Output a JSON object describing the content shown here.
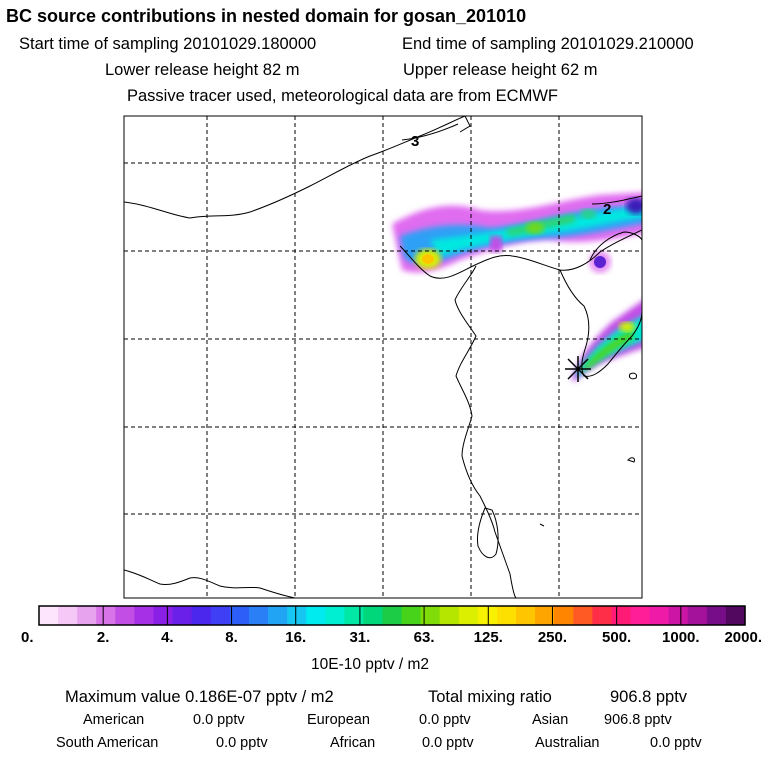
{
  "header": {
    "title": "BC  source contributions in nested domain for gosan_201010",
    "start_time": "Start time of sampling 20101029.180000",
    "end_time": "End time of sampling 20101029.210000",
    "lower_height": "Lower release height   82 m",
    "upper_height": "Upper release height   62 m",
    "note": "Passive tracer used, meteorological data are from ECMWF"
  },
  "map": {
    "contour_labels": [
      "3",
      "2"
    ],
    "receptor": "gosan"
  },
  "colorbar": {
    "tick_labels": [
      "0.",
      "2.",
      "4.",
      "8.",
      "16.",
      "31.",
      "63.",
      "125.",
      "250.",
      "500.",
      "1000.",
      "2000."
    ],
    "unit_label": "10E-10 pptv / m2",
    "colors": [
      "#fde6fd",
      "#f5c8f7",
      "#e8a3ee",
      "#d873e8",
      "#c24ee6",
      "#a630e6",
      "#8a1fe6",
      "#6a20e8",
      "#4b27ee",
      "#3f3ff6",
      "#2d5ef7",
      "#2a7ef6",
      "#21a4f4",
      "#16c8f1",
      "#00ebf0",
      "#00eed2",
      "#00e8a6",
      "#00d77a",
      "#1ccc46",
      "#46d31a",
      "#80dc08",
      "#b4e600",
      "#dcef00",
      "#f8f200",
      "#fde000",
      "#ffc600",
      "#ffa500",
      "#ff8400",
      "#ff5a24",
      "#ff2e48",
      "#ff1a76",
      "#ff1e98",
      "#f01aa8",
      "#cd15a5",
      "#a4129c",
      "#780d8a",
      "#53085f"
    ]
  },
  "summary": {
    "max_value": "Maximum value  0.186E-07 pptv / m2",
    "total_label": "Total mixing ratio",
    "total_value": "906.8 pptv",
    "regions": [
      {
        "name": "American",
        "value": "0.0 pptv"
      },
      {
        "name": "European",
        "value": "0.0 pptv"
      },
      {
        "name": "Asian",
        "value": "906.8 pptv"
      },
      {
        "name": "South American",
        "value": "0.0 pptv"
      },
      {
        "name": "African",
        "value": "0.0 pptv"
      },
      {
        "name": "Australian",
        "value": "0.0 pptv"
      }
    ]
  }
}
